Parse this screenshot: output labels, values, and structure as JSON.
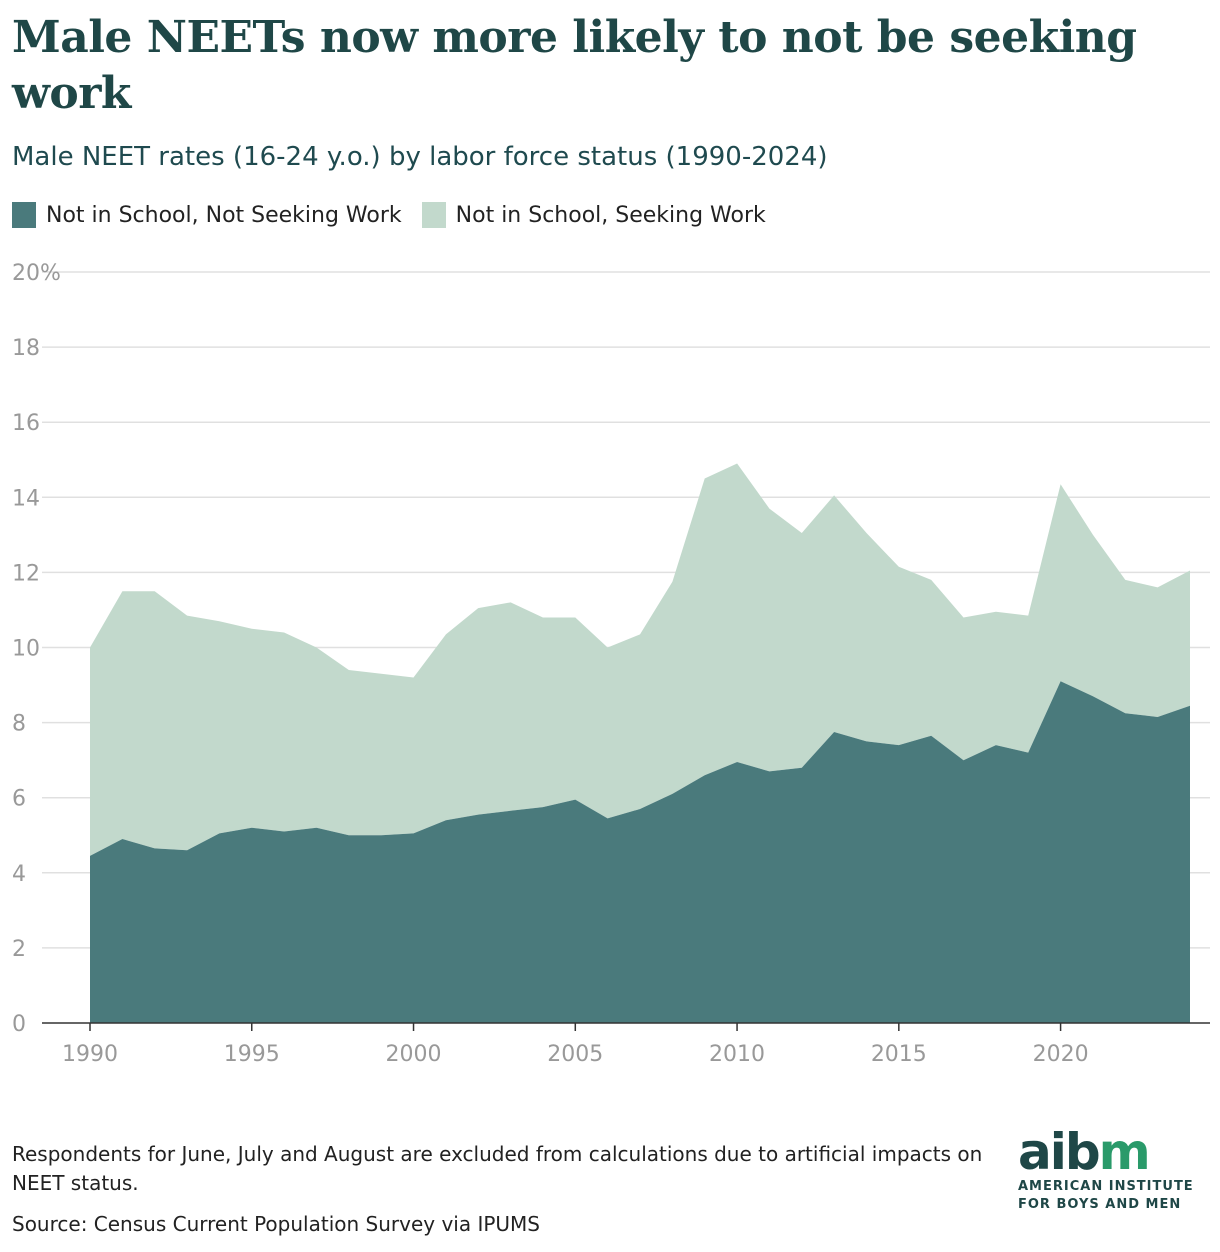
{
  "title": "Male NEETs now more likely to not be seeking work",
  "subtitle": "Male NEET rates (16-24 y.o.) by labor force status (1990-2024)",
  "footnote": "Respondents for June, July and August are excluded from calculations due to artificial impacts on NEET status.",
  "source": "Source: Census Current Population Survey via IPUMS",
  "logo": {
    "mark_main": "aib",
    "mark_accent": "m",
    "line1": "AMERICAN INSTITUTE",
    "line2": "FOR BOYS AND MEN"
  },
  "colors": {
    "not_seeking": "#4a7a7c",
    "seeking": "#c2d9cc",
    "grid": "#e0e0e0",
    "axis_text": "#999999"
  },
  "chart_data": {
    "type": "area",
    "stacked": true,
    "title": "Male NEETs now more likely to not be seeking work",
    "subtitle": "Male NEET rates (16-24 y.o.) by labor force status (1990-2024)",
    "xlabel": "",
    "ylabel": "",
    "x": [
      1990,
      1991,
      1992,
      1993,
      1994,
      1995,
      1996,
      1997,
      1998,
      1999,
      2000,
      2001,
      2002,
      2003,
      2004,
      2005,
      2006,
      2007,
      2008,
      2009,
      2010,
      2011,
      2012,
      2013,
      2014,
      2015,
      2016,
      2017,
      2018,
      2019,
      2020,
      2021,
      2022,
      2023,
      2024
    ],
    "xlim": [
      1990,
      2024
    ],
    "ylim": [
      0,
      20
    ],
    "xticks": [
      1990,
      1995,
      2000,
      2005,
      2010,
      2015,
      2020
    ],
    "yticks": [
      0,
      2,
      4,
      6,
      8,
      10,
      12,
      14,
      16,
      18,
      20
    ],
    "ytick_labels": [
      "0",
      "2",
      "4",
      "6",
      "8",
      "10",
      "12",
      "14",
      "16",
      "18",
      "20%"
    ],
    "series": [
      {
        "name": "Not in School, Not Seeking Work",
        "values": [
          4.45,
          4.9,
          4.65,
          4.6,
          5.05,
          5.2,
          5.1,
          5.2,
          5.0,
          5.0,
          5.05,
          5.4,
          5.55,
          5.65,
          5.75,
          5.95,
          5.45,
          5.7,
          6.1,
          6.6,
          6.95,
          6.7,
          6.8,
          7.75,
          7.5,
          7.4,
          7.65,
          7.0,
          7.4,
          7.2,
          9.1,
          8.7,
          8.25,
          8.15,
          8.45
        ]
      },
      {
        "name": "Not in School, Seeking Work",
        "values": [
          5.55,
          6.6,
          6.85,
          6.25,
          5.65,
          5.3,
          5.3,
          4.8,
          4.4,
          4.3,
          4.15,
          4.95,
          5.5,
          5.55,
          5.05,
          4.85,
          4.55,
          4.65,
          5.65,
          7.9,
          7.95,
          7.0,
          6.25,
          6.3,
          5.55,
          4.75,
          4.15,
          3.8,
          3.55,
          3.65,
          5.25,
          4.3,
          3.55,
          3.45,
          3.6
        ]
      }
    ],
    "legend_position": "top-left",
    "grid": true
  }
}
